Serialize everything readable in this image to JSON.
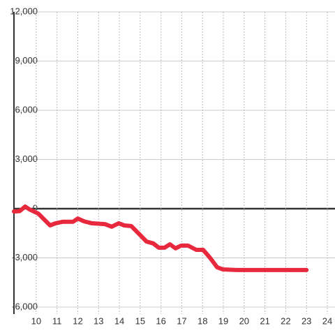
{
  "chart_data": {
    "type": "line",
    "x": [
      8.93,
      9.2,
      9.47,
      9.67,
      10.1,
      10.43,
      10.67,
      10.93,
      11.27,
      11.6,
      11.77,
      12.0,
      12.3,
      12.67,
      13.3,
      13.63,
      13.97,
      14.23,
      14.57,
      14.97,
      15.3,
      15.63,
      15.9,
      16.17,
      16.43,
      16.7,
      16.97,
      17.3,
      17.7,
      18.03,
      18.37,
      18.7,
      18.97,
      19.64,
      23.0
    ],
    "series": [
      {
        "color": "#e8283c",
        "values": [
          -170,
          -150,
          130,
          -40,
          -300,
          -720,
          -1020,
          -890,
          -800,
          -800,
          -800,
          -600,
          -770,
          -890,
          -940,
          -1100,
          -890,
          -1020,
          -1060,
          -1570,
          -2000,
          -2120,
          -2380,
          -2380,
          -2170,
          -2420,
          -2250,
          -2250,
          -2510,
          -2510,
          -3010,
          -3570,
          -3700,
          -3740,
          -3740
        ]
      }
    ],
    "xlim": [
      8.93,
      24.37
    ],
    "xticks": [
      10,
      11,
      12,
      13,
      14,
      15,
      16,
      17,
      18,
      19,
      20,
      21,
      22,
      23,
      24
    ],
    "ylim": [
      -6000,
      12000
    ],
    "yticks": [
      {
        "value": -6000,
        "label": "-6,000"
      },
      {
        "value": -3000,
        "label": "-3,000"
      },
      0,
      {
        "value": 3000,
        "label": "3,000"
      },
      {
        "value": 6000,
        "label": "6,000"
      },
      {
        "value": 9000,
        "label": "9,000"
      },
      {
        "value": 12000,
        "label": "12,000"
      }
    ],
    "grid": true
  }
}
